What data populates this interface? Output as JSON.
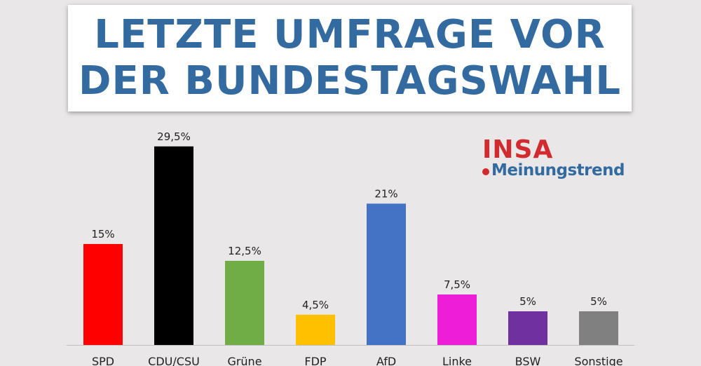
{
  "header": {
    "title_line1": "LETZTE UMFRAGE VOR",
    "title_line2": "DER BUNDESTAGSWAHL"
  },
  "logo": {
    "brand": "INSA",
    "sub": "Meinungstrend",
    "brand_color": "#d12a2f",
    "sub_color": "#336a9f"
  },
  "chart_data": {
    "type": "bar",
    "title": "LETZTE UMFRAGE VOR DER BUNDESTAGSWAHL",
    "categories": [
      "SPD",
      "CDU/CSU",
      "Grüne",
      "FDP",
      "AfD",
      "Linke",
      "BSW",
      "Sonstige"
    ],
    "values": [
      15,
      29.5,
      12.5,
      4.5,
      21,
      7.5,
      5,
      5
    ],
    "value_labels": [
      "15%",
      "29,5%",
      "12,5%",
      "4,5%",
      "21%",
      "7,5%",
      "5%",
      "5%"
    ],
    "colors": [
      "#ff0000",
      "#000000",
      "#70ad47",
      "#ffc000",
      "#4472c4",
      "#ee1ed8",
      "#7030a0",
      "#808080"
    ],
    "unit": "%",
    "xlabel": "",
    "ylabel": "",
    "grid": false,
    "legend": "none"
  }
}
